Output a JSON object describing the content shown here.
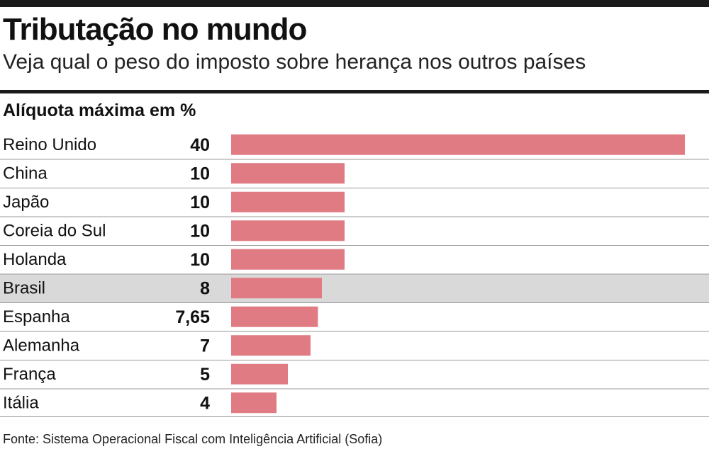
{
  "header": {
    "title": "Tributação no mundo",
    "subtitle": "Veja qual o peso do imposto sobre herança nos outros países"
  },
  "chart_data": {
    "type": "bar",
    "orientation": "horizontal",
    "title": "Tributação no mundo",
    "subtitle": "Veja qual o peso do imposto sobre herança nos outros países",
    "xlabel": "Alíquota máxima em %",
    "categories": [
      "Reino Unido",
      "China",
      "Japão",
      "Coreia do Sul",
      "Holanda",
      "Brasil",
      "Espanha",
      "Alemanha",
      "França",
      "Itália"
    ],
    "values": [
      40,
      10,
      10,
      10,
      10,
      8,
      7.65,
      7,
      5,
      4
    ],
    "value_labels": [
      "40",
      "10",
      "10",
      "10",
      "10",
      "8",
      "7,65",
      "7",
      "5",
      "4"
    ],
    "highlight": "Brasil",
    "xlim": [
      0,
      40
    ],
    "grid": false,
    "colors": {
      "bar": "#e07b83",
      "highlight_row": "#d9d9d9",
      "row_divider": "#9a9a9a",
      "rule": "#1b1b1b"
    }
  },
  "footer": {
    "source": "Fonte: Sistema Operacional Fiscal com Inteligência Artificial (Sofia)"
  }
}
